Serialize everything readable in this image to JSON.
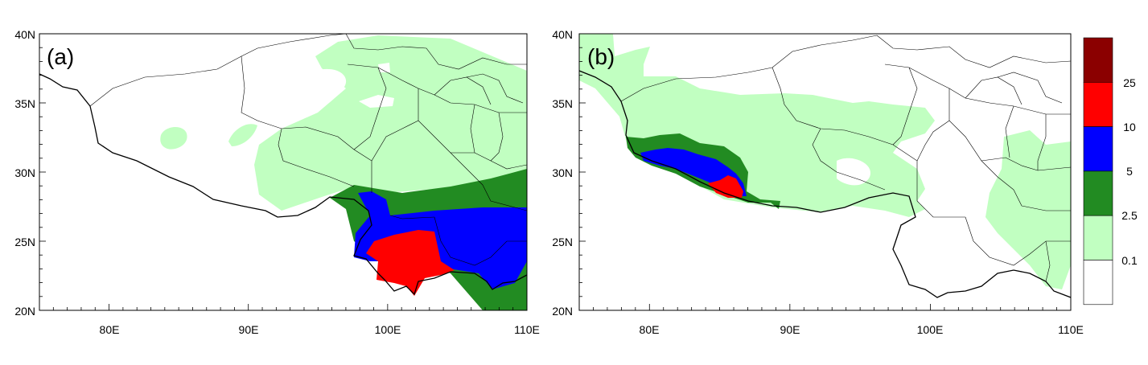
{
  "panels": [
    {
      "label": "(a)",
      "lat_ticks": [
        "40N",
        "35N",
        "30N",
        "25N",
        "20N"
      ],
      "lon_ticks": [
        "80E",
        "90E",
        "100E",
        "110E"
      ]
    },
    {
      "label": "(b)",
      "lat_ticks": [
        "40N",
        "35N",
        "30N",
        "25N",
        "20N"
      ],
      "lon_ticks": [
        "80E",
        "90E",
        "100E",
        "110E"
      ]
    }
  ],
  "extent": {
    "lon_min": 75,
    "lon_max": 110,
    "lat_min": 20,
    "lat_max": 40
  },
  "colorbar": {
    "labels": [
      "25",
      "10",
      "5",
      "2.5",
      "0.1"
    ],
    "colors": [
      "#8b0000",
      "#ff0000",
      "#0000ff",
      "#228b22",
      "#c1ffc1",
      "#ffffff"
    ]
  }
}
